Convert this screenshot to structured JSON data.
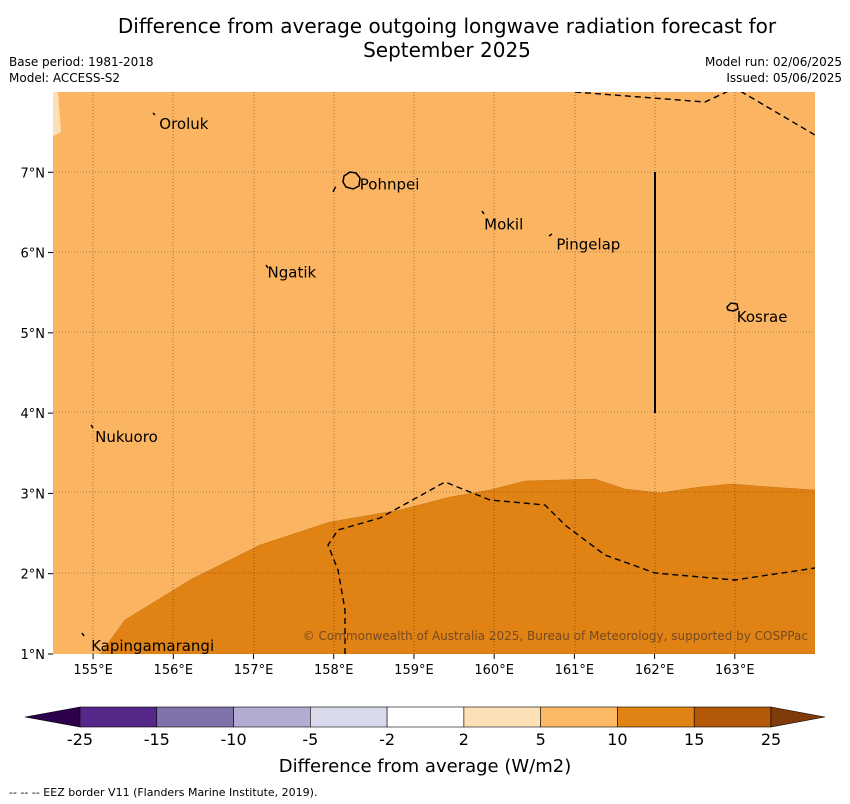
{
  "title": {
    "line1": "Difference from average outgoing longwave radiation forecast for",
    "line2": "September 2025"
  },
  "meta": {
    "base_period": "Base period: 1981-2018",
    "model": "Model: ACCESS-S2",
    "model_run": "Model run: 02/06/2025",
    "issued": "Issued: 05/06/2025"
  },
  "map": {
    "lon_range": [
      154.5,
      164.0
    ],
    "lat_range": [
      1.0,
      8.0
    ],
    "lon_ticks": [
      "155°E",
      "156°E",
      "157°E",
      "158°E",
      "159°E",
      "160°E",
      "161°E",
      "162°E",
      "163°E"
    ],
    "lat_ticks": [
      "1°N",
      "2°N",
      "3°N",
      "4°N",
      "5°N",
      "6°N",
      "7°N"
    ],
    "places": [
      {
        "name": "Oroluk",
        "lon": 155.8,
        "lat": 7.6
      },
      {
        "name": "Pohnpei",
        "lon": 158.3,
        "lat": 6.85
      },
      {
        "name": "Mokil",
        "lon": 159.85,
        "lat": 6.35
      },
      {
        "name": "Pingelap",
        "lon": 160.75,
        "lat": 6.1
      },
      {
        "name": "Ngatik",
        "lon": 157.15,
        "lat": 5.75
      },
      {
        "name": "Kosrae",
        "lon": 163.0,
        "lat": 5.2
      },
      {
        "name": "Nukuoro",
        "lon": 155.0,
        "lat": 3.7
      },
      {
        "name": "Kapingamarangi",
        "lon": 154.95,
        "lat": 1.1
      }
    ],
    "copyright": "© Commonwealth of Australia 2025, Bureau of Meteorology, supported by COSPPac",
    "colors": {
      "band_5_10": "#fbb562",
      "band_10_15": "#e08214",
      "band_2_5": "#fee0b6"
    }
  },
  "colorbar": {
    "label": "Difference from average (W/m2)",
    "ticks": [
      "-25",
      "-15",
      "-10",
      "-5",
      "-2",
      "2",
      "5",
      "10",
      "15",
      "25"
    ],
    "colors": [
      "#2d004b",
      "#542788",
      "#8073ac",
      "#b2abd2",
      "#d8daeb",
      "#ffffff",
      "#fee0b6",
      "#fdb863",
      "#e08214",
      "#b35806",
      "#7f3b08"
    ]
  },
  "footer": "--  --  -- EEZ border V11 (Flanders Marine Institute, 2019)."
}
